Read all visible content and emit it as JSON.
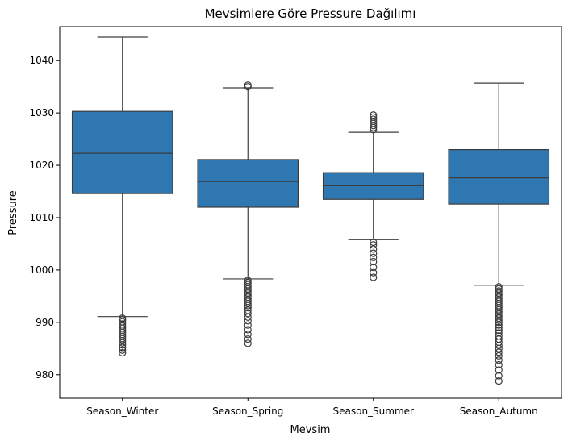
{
  "chart_data": {
    "type": "box",
    "title": "Mevsimlere Göre Pressure Dağılımı",
    "xlabel": "Mevsim",
    "ylabel": "Pressure",
    "ylim": [
      975.5,
      1046.5
    ],
    "yticks": [
      980,
      990,
      1000,
      1010,
      1020,
      1030,
      1040
    ],
    "grid": false,
    "colors": {
      "box": "#2f77b0",
      "line": "#3d3d3d"
    },
    "categories": [
      "Season_Winter",
      "Season_Spring",
      "Season_Summer",
      "Season_Autumn"
    ],
    "boxes": [
      {
        "category": "Season_Winter",
        "whisker_low": 991.1,
        "q1": 1014.6,
        "median": 1022.3,
        "q3": 1030.3,
        "whisker_high": 1044.5,
        "outliers": [
          990.8,
          990.5,
          990.1,
          989.7,
          989.3,
          988.9,
          988.5,
          988.1,
          987.7,
          987.3,
          986.9,
          986.5,
          986.1,
          985.7,
          985.2,
          984.7,
          984.2
        ]
      },
      {
        "category": "Season_Spring",
        "whisker_low": 998.3,
        "q1": 1012.0,
        "median": 1016.9,
        "q3": 1021.1,
        "whisker_high": 1034.8,
        "outliers": [
          998.0,
          997.6,
          997.2,
          996.8,
          996.4,
          996.0,
          995.6,
          995.2,
          994.8,
          994.4,
          994.0,
          993.6,
          993.2,
          992.8,
          992.3,
          991.7,
          991.0,
          990.3,
          989.5,
          988.6,
          987.7,
          986.8,
          986.0,
          1035.0,
          1035.3
        ]
      },
      {
        "category": "Season_Summer",
        "whisker_low": 1005.8,
        "q1": 1013.5,
        "median": 1016.1,
        "q3": 1018.6,
        "whisker_high": 1026.3,
        "outliers": [
          1005.3,
          1004.8,
          1004.0,
          1003.2,
          1002.4,
          1001.6,
          1000.5,
          999.5,
          998.6,
          1026.8,
          1027.2,
          1027.6,
          1028.0,
          1028.4,
          1028.8,
          1029.2,
          1029.6
        ]
      },
      {
        "category": "Season_Autumn",
        "whisker_low": 997.1,
        "q1": 1012.6,
        "median": 1017.6,
        "q3": 1023.0,
        "whisker_high": 1035.7,
        "outliers": [
          996.8,
          996.4,
          996.0,
          995.6,
          995.2,
          994.8,
          994.4,
          994.0,
          993.6,
          993.2,
          992.8,
          992.4,
          992.0,
          991.6,
          991.2,
          990.8,
          990.4,
          990.0,
          989.5,
          989.0,
          988.5,
          988.0,
          987.4,
          986.8,
          986.2,
          985.6,
          985.0,
          984.3,
          983.6,
          982.8,
          981.9,
          980.9,
          979.8,
          978.8
        ]
      }
    ]
  }
}
